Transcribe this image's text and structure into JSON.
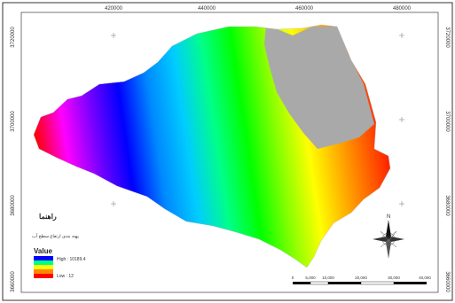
{
  "map": {
    "frame": {
      "border_color": "#333333",
      "background": "#ffffff"
    },
    "coordinates": {
      "top": [
        "420000",
        "440000",
        "460000",
        "480000"
      ],
      "left": [
        "3720000",
        "3700000",
        "3680000",
        "3660000"
      ],
      "right": [
        "3720000",
        "3700000",
        "3680000",
        "3660000"
      ]
    },
    "surface": {
      "gradient_stops": [
        "#ff0000",
        "#ff00ff",
        "#7700ff",
        "#0000ff",
        "#0088ff",
        "#00ccff",
        "#00ff88",
        "#00ff00",
        "#88ff00",
        "#ffff00",
        "#ffaa00",
        "#ff5500",
        "#ff0000"
      ],
      "no_data_color": "#a9a9a9"
    },
    "legend": {
      "heading": "راهنما",
      "subheading": "پهنه بندی ارتفاع سطح آب",
      "title": "Value",
      "high_label": "High : 10189.4",
      "low_label": "Low : 12",
      "swatches": [
        "#0000ff",
        "#00ff88",
        "#ffff00",
        "#ff8800",
        "#ff0000"
      ]
    },
    "north_arrow": {
      "label": "N"
    },
    "scale_bar": {
      "labels": [
        "0",
        "5,000",
        "10,000",
        "20,000",
        "30,000",
        "40,000"
      ]
    }
  }
}
